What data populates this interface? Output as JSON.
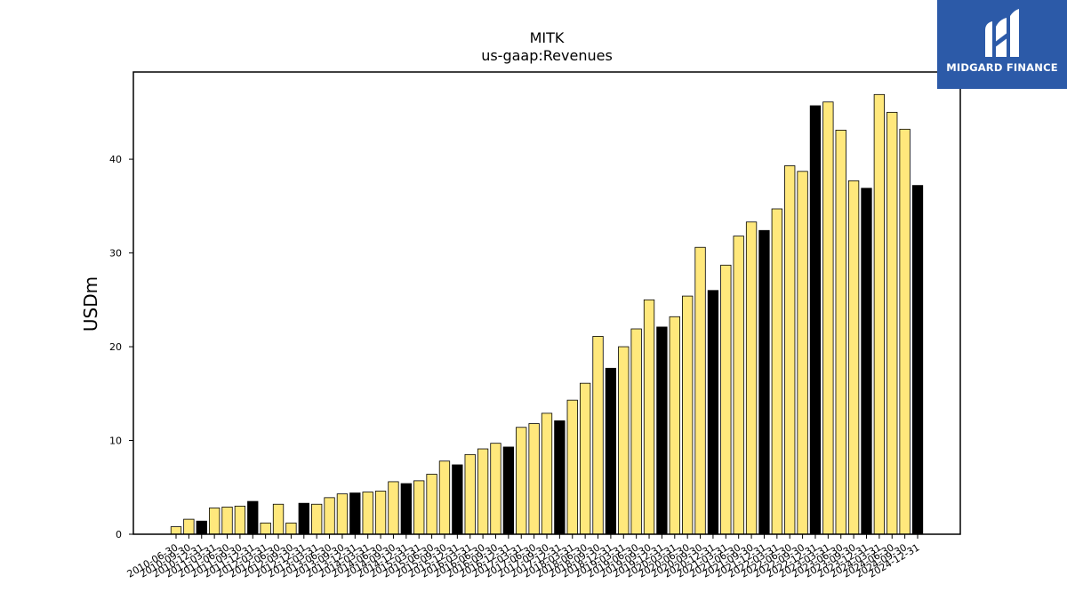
{
  "chart_data": {
    "type": "bar",
    "title": "MITK",
    "subtitle": "us-gaap:Revenues",
    "xlabel": "",
    "ylabel": "USDm",
    "ylim": [
      0,
      49.3
    ],
    "yticks": [
      0,
      10,
      20,
      30,
      40
    ],
    "grid": false,
    "colors": {
      "quarter": "#ffe87c",
      "annual": "#000000",
      "edge": "#000000"
    },
    "categories": [
      "2010-06-30",
      "2010-09-30",
      "2010-12-31",
      "2011-03-31",
      "2011-06-30",
      "2011-09-30",
      "2011-12-31",
      "2012-03-31",
      "2012-06-30",
      "2012-09-30",
      "2012-12-31",
      "2013-03-31",
      "2013-06-30",
      "2013-09-30",
      "2013-12-31",
      "2014-03-31",
      "2014-06-30",
      "2014-09-30",
      "2014-12-31",
      "2015-03-31",
      "2015-06-30",
      "2015-09-30",
      "2015-12-31",
      "2016-03-31",
      "2016-06-30",
      "2016-09-30",
      "2016-12-31",
      "2017-03-31",
      "2017-06-30",
      "2017-09-30",
      "2017-12-31",
      "2018-03-31",
      "2018-06-30",
      "2018-09-30",
      "2018-12-31",
      "2019-03-31",
      "2019-06-30",
      "2019-09-30",
      "2019-12-31",
      "2020-03-31",
      "2020-06-30",
      "2020-09-30",
      "2020-12-31",
      "2021-03-31",
      "2021-06-30",
      "2021-09-30",
      "2021-12-31",
      "2022-03-31",
      "2022-06-30",
      "2022-09-30",
      "2022-12-31",
      "2023-03-31",
      "2023-06-30",
      "2023-09-30",
      "2023-12-31",
      "2024-03-31",
      "2024-06-30",
      "2024-09-30",
      "2024-12-31"
    ],
    "values": [
      0.8,
      1.6,
      1.4,
      2.8,
      2.9,
      3.0,
      3.5,
      1.2,
      3.2,
      1.2,
      3.3,
      3.2,
      3.9,
      4.3,
      4.4,
      4.5,
      4.6,
      5.6,
      5.4,
      5.7,
      6.4,
      7.8,
      7.4,
      8.5,
      9.1,
      9.7,
      9.3,
      11.4,
      11.8,
      12.9,
      12.1,
      14.3,
      16.1,
      21.1,
      17.7,
      20.0,
      21.9,
      25.0,
      22.1,
      23.2,
      25.4,
      30.6,
      26.0,
      28.7,
      31.8,
      33.3,
      32.4,
      34.7,
      39.3,
      38.7,
      45.7,
      46.1,
      43.1,
      37.7,
      36.9,
      46.9,
      45.0,
      43.2,
      37.2
    ],
    "is_annual": [
      false,
      false,
      true,
      false,
      false,
      false,
      true,
      false,
      false,
      false,
      true,
      false,
      false,
      false,
      true,
      false,
      false,
      false,
      true,
      false,
      false,
      false,
      true,
      false,
      false,
      false,
      true,
      false,
      false,
      false,
      true,
      false,
      false,
      false,
      true,
      false,
      false,
      false,
      true,
      false,
      false,
      false,
      true,
      false,
      false,
      false,
      true,
      false,
      false,
      false,
      true,
      false,
      false,
      false,
      true,
      false,
      false,
      false,
      true
    ]
  },
  "logo": {
    "text": "MIDGARD FINANCE",
    "icon": "midgard-m-icon"
  }
}
